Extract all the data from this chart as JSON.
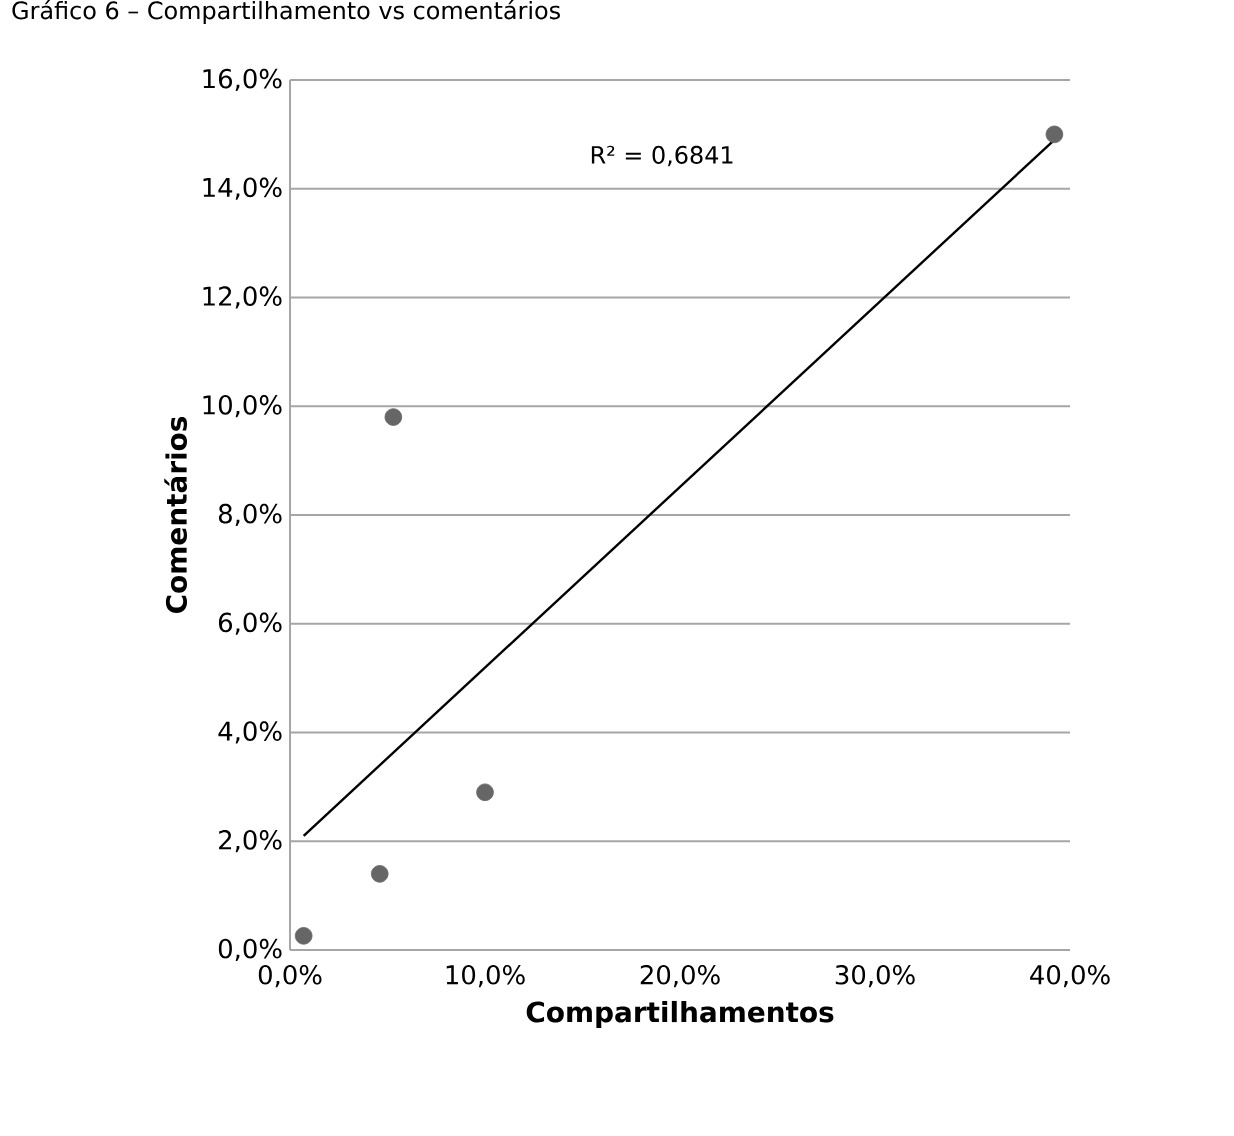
{
  "chart_data": {
    "type": "scatter",
    "title": "Gráfico 6 – Compartilhamento vs comentários",
    "xlabel": "Compartilhamentos",
    "ylabel": "Comentários",
    "annotations": [
      "R² = 0,6841"
    ],
    "series": [
      {
        "color": "#666666",
        "marker": "circle",
        "x": [
          0.7,
          4.6,
          5.3,
          10.0,
          39.2
        ],
        "values": [
          0.26,
          1.4,
          9.8,
          2.9,
          15.0
        ]
      },
      {
        "type": "line",
        "color": "#000000",
        "marker": "none",
        "x": [
          0.7,
          39.2
        ],
        "values": [
          2.1,
          14.9
        ]
      }
    ],
    "xlim": [
      0,
      40
    ],
    "ylim": [
      0,
      16
    ],
    "xticks": [
      {
        "value": 0,
        "label": "0,0%"
      },
      {
        "value": 10,
        "label": "10,0%"
      },
      {
        "value": 20,
        "label": "20,0%"
      },
      {
        "value": 30,
        "label": "30,0%"
      },
      {
        "value": 40,
        "label": "40,0%"
      }
    ],
    "yticks": [
      {
        "value": 0,
        "label": "0,0%"
      },
      {
        "value": 2,
        "label": "2,0%"
      },
      {
        "value": 4,
        "label": "4,0%"
      },
      {
        "value": 6,
        "label": "6,0%"
      },
      {
        "value": 8,
        "label": "8,0%"
      },
      {
        "value": 10,
        "label": "10,0%"
      },
      {
        "value": 12,
        "label": "12,0%"
      },
      {
        "value": 14,
        "label": "14,0%"
      },
      {
        "value": 16,
        "label": "16,0%"
      }
    ],
    "grid": "y"
  }
}
